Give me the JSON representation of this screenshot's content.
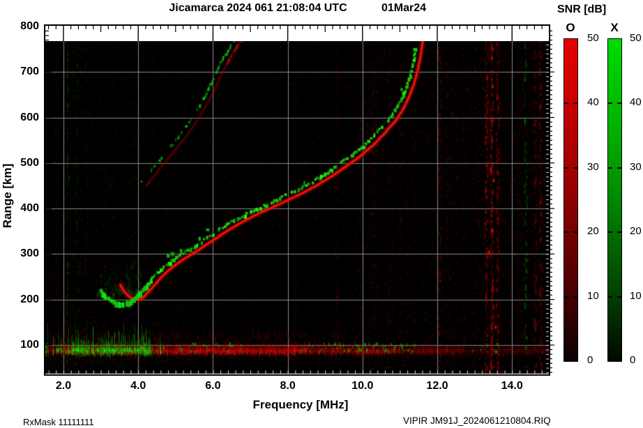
{
  "header": {
    "title": "Jicamarca 2024 061 21:08:04 UTC",
    "date": "01Mar24"
  },
  "colorbar": {
    "title": "SNR [dB]",
    "o_label": "O",
    "x_label": "X",
    "ticks": [
      "50",
      "40",
      "30",
      "20",
      "10",
      "0"
    ],
    "tick_values": [
      50,
      40,
      30,
      20,
      10,
      0
    ],
    "dash_values": [
      40,
      30,
      20,
      10
    ],
    "o_top_color": "#e60000",
    "x_top_color": "#00dc00",
    "min": 0,
    "max": 50
  },
  "axes": {
    "x": {
      "label": "Frequency [MHz]",
      "ticks": [
        "2.0",
        "4.0",
        "6.0",
        "8.0",
        "10.0",
        "12.0",
        "14.0"
      ],
      "tick_values": [
        2,
        4,
        6,
        8,
        10,
        12,
        14
      ],
      "min": 1.5,
      "max": 15.0
    },
    "y": {
      "label": "Range [km]",
      "ticks": [
        "800",
        "700",
        "600",
        "500",
        "400",
        "300",
        "200",
        "100"
      ],
      "tick_values": [
        800,
        700,
        600,
        500,
        400,
        300,
        200,
        100
      ],
      "min": 36,
      "max": 801
    }
  },
  "footer": {
    "left": "RxMask 11111111",
    "right": "VIPIR  JM91J_2024061210804.RIQ"
  },
  "chart_data": {
    "type": "heatmap",
    "title": "Jicamarca 2024 061 21:08:04 UTC",
    "date_label": "01Mar24",
    "xlabel": "Frequency [MHz]",
    "ylabel": "Range [km]",
    "xlim": [
      1.5,
      15.0
    ],
    "ylim": [
      36,
      801
    ],
    "grid": true,
    "x_gridlines_mhz": [
      2,
      4,
      6,
      8,
      10,
      12,
      14
    ],
    "y_gridlines_km": [
      100,
      200,
      300,
      400,
      500,
      600,
      700
    ],
    "legend": {
      "title": "SNR [dB]",
      "o_color_hex": "#e00000",
      "x_color_hex": "#00cc00",
      "scale_db": [
        0,
        50
      ]
    },
    "critical_frequencies_mhz": {
      "o_mode": 11.61,
      "x_mode": 11.43
    },
    "f_layer_minimum": {
      "freq_mhz": 3.9,
      "range_km": 197
    },
    "o_trace": {
      "name": "O-mode first hop",
      "color": "#e00000",
      "points_mhz_km": [
        [
          3.52,
          232
        ],
        [
          3.62,
          218
        ],
        [
          3.75,
          207
        ],
        [
          3.9,
          199
        ],
        [
          4.05,
          200
        ],
        [
          4.2,
          210
        ],
        [
          4.4,
          228
        ],
        [
          4.65,
          252
        ],
        [
          4.9,
          270
        ],
        [
          5.2,
          288
        ],
        [
          5.6,
          308
        ],
        [
          6.0,
          330
        ],
        [
          6.4,
          352
        ],
        [
          6.8,
          371
        ],
        [
          7.2,
          388
        ],
        [
          7.6,
          403
        ],
        [
          8.0,
          418
        ],
        [
          8.4,
          434
        ],
        [
          8.8,
          452
        ],
        [
          9.2,
          472
        ],
        [
          9.6,
          495
        ],
        [
          9.95,
          516
        ],
        [
          10.3,
          540
        ],
        [
          10.6,
          566
        ],
        [
          10.9,
          594
        ],
        [
          11.1,
          620
        ],
        [
          11.25,
          646
        ],
        [
          11.37,
          672
        ],
        [
          11.46,
          698
        ],
        [
          11.53,
          724
        ],
        [
          11.58,
          748
        ],
        [
          11.61,
          766
        ]
      ]
    },
    "x_trace": {
      "name": "X-mode first hop",
      "color": "#00cc00",
      "points_mhz_km": [
        [
          3.0,
          220
        ],
        [
          3.15,
          206
        ],
        [
          3.3,
          197
        ],
        [
          3.45,
          192
        ],
        [
          3.6,
          191
        ],
        [
          3.75,
          194
        ],
        [
          3.9,
          203
        ],
        [
          4.05,
          215
        ],
        [
          4.25,
          233
        ],
        [
          4.5,
          258
        ],
        [
          4.75,
          276
        ],
        [
          5.05,
          294
        ],
        [
          5.45,
          314
        ],
        [
          5.85,
          336
        ],
        [
          6.25,
          358
        ],
        [
          6.65,
          377
        ],
        [
          7.05,
          394
        ],
        [
          7.45,
          409
        ],
        [
          7.85,
          424
        ],
        [
          8.25,
          440
        ],
        [
          8.65,
          458
        ],
        [
          9.05,
          478
        ],
        [
          9.45,
          501
        ],
        [
          9.8,
          522
        ],
        [
          10.15,
          546
        ],
        [
          10.45,
          572
        ],
        [
          10.75,
          600
        ],
        [
          10.95,
          626
        ],
        [
          11.1,
          652
        ],
        [
          11.22,
          678
        ],
        [
          11.31,
          704
        ],
        [
          11.38,
          730
        ],
        [
          11.43,
          750
        ]
      ]
    },
    "second_hop_o": {
      "name": "O-mode second hop",
      "color": "#b00000",
      "points_mhz_km": [
        [
          4.2,
          448
        ],
        [
          4.55,
          484
        ],
        [
          4.9,
          520
        ],
        [
          5.3,
          560
        ],
        [
          5.65,
          602
        ],
        [
          5.95,
          646
        ],
        [
          6.2,
          690
        ],
        [
          6.45,
          730
        ],
        [
          6.65,
          758
        ],
        [
          6.8,
          772
        ]
      ]
    },
    "second_hop_x": {
      "name": "X-mode second hop",
      "color": "#00aa00",
      "points_mhz_km": [
        [
          4.07,
          454
        ],
        [
          4.42,
          490
        ],
        [
          4.77,
          526
        ],
        [
          5.17,
          566
        ],
        [
          5.52,
          608
        ],
        [
          5.82,
          652
        ],
        [
          6.07,
          696
        ],
        [
          6.32,
          736
        ],
        [
          6.52,
          762
        ],
        [
          6.67,
          776
        ]
      ]
    },
    "e_region": {
      "center_km": 93,
      "red_band_extent_mhz": [
        1.5,
        15.0
      ],
      "green_clusters_mhz": [
        [
          1.5,
          4.7
        ],
        [
          5.0,
          6.8
        ],
        [
          8.3,
          11.4
        ],
        [
          12.9,
          13.7
        ]
      ],
      "green_spike_top_km": 150
    },
    "hook_spread": {
      "green_mhz": [
        2.9,
        4.1
      ],
      "green_km": [
        205,
        290
      ],
      "red_mhz": [
        3.5,
        4.35
      ],
      "red_km": [
        200,
        250
      ]
    },
    "rfi_columns": [
      {
        "f": 2.1,
        "c": "g",
        "a": 0.2
      },
      {
        "f": 2.35,
        "c": "g",
        "a": 0.16
      },
      {
        "f": 2.6,
        "c": "g",
        "a": 0.1
      },
      {
        "f": 9.3,
        "c": "r",
        "a": 0.2
      },
      {
        "f": 9.95,
        "c": "r",
        "a": 0.14
      },
      {
        "f": 12.05,
        "c": "r",
        "a": 0.26
      },
      {
        "f": 12.25,
        "c": "r",
        "a": 0.18
      },
      {
        "f": 13.3,
        "c": "r",
        "a": 0.48
      },
      {
        "f": 13.45,
        "c": "r",
        "a": 0.62
      },
      {
        "f": 13.6,
        "c": "r",
        "a": 0.42
      },
      {
        "f": 14.35,
        "c": "g",
        "a": 0.28
      },
      {
        "f": 14.6,
        "c": "r",
        "a": 0.32
      },
      {
        "f": 14.75,
        "c": "r",
        "a": 0.38
      }
    ],
    "rfi_bright_blobs": [
      [
        13.42,
        488
      ],
      [
        13.5,
        462
      ],
      [
        13.38,
        305
      ],
      [
        13.55,
        140
      ],
      [
        13.45,
        352
      ]
    ]
  }
}
